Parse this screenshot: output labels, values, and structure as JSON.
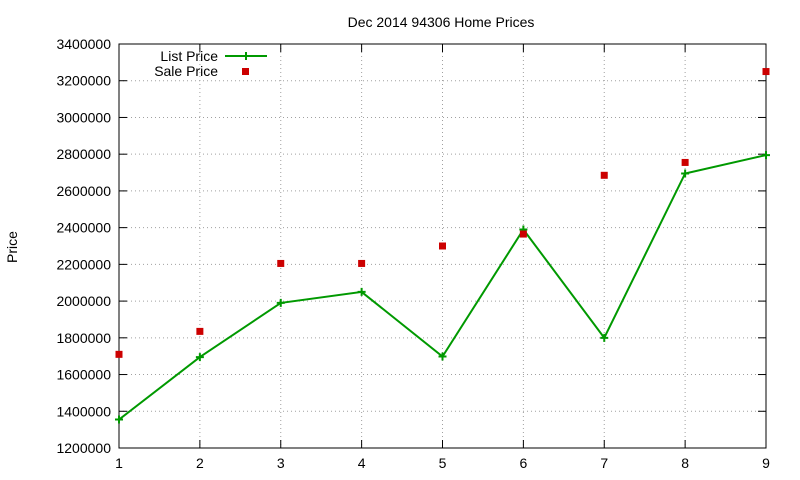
{
  "chart_data": {
    "type": "line",
    "title": "Dec 2014 94306 Home Prices",
    "xlabel": "",
    "ylabel": "Price",
    "x": [
      1,
      2,
      3,
      4,
      5,
      6,
      7,
      8,
      9
    ],
    "xlim": [
      1,
      9
    ],
    "ylim": [
      1200000,
      3400000
    ],
    "yticks": [
      "1200000",
      "1400000",
      "1600000",
      "1800000",
      "2000000",
      "2200000",
      "2400000",
      "2600000",
      "2800000",
      "3000000",
      "3200000",
      "3400000"
    ],
    "xticks": [
      "1",
      "2",
      "3",
      "4",
      "5",
      "6",
      "7",
      "8",
      "9"
    ],
    "grid": true,
    "legend_position": "top-left",
    "series": [
      {
        "name": "List Price",
        "type": "line",
        "marker": "plus",
        "color": "#009900",
        "values": [
          1355000,
          1695000,
          1990000,
          2050000,
          1698000,
          2390000,
          1800000,
          2695000,
          2795000
        ]
      },
      {
        "name": "Sale Price",
        "type": "scatter",
        "marker": "square",
        "color": "#cc0000",
        "values": [
          1710000,
          1835000,
          2205000,
          2205000,
          2300000,
          2365000,
          2685000,
          2755000,
          3250000
        ]
      }
    ]
  }
}
